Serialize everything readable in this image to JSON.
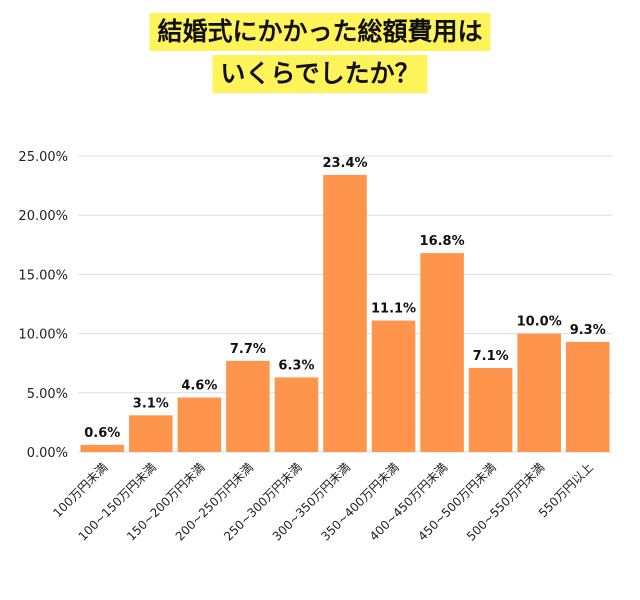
{
  "chart_data": {
    "type": "bar",
    "title": [
      "結婚式にかかった総額費用は",
      "いくらでしたか？"
    ],
    "categories": [
      "100万円未満",
      "100~150万円未満",
      "150~200万円未満",
      "200~250万円未満",
      "250~300万円未満",
      "300~350万円未満",
      "350~400万円未満",
      "400~450万円未満",
      "450~500万円未満",
      "500~550万円未満",
      "550万円以上"
    ],
    "values": [
      0.6,
      3.1,
      4.6,
      7.7,
      6.3,
      23.4,
      11.1,
      16.8,
      7.1,
      10.0,
      9.3
    ],
    "data_labels": [
      "0.6%",
      "3.1%",
      "4.6%",
      "7.7%",
      "6.3%",
      "23.4%",
      "11.1%",
      "16.8%",
      "7.1%",
      "10.0%",
      "9.3%"
    ],
    "yticks": [
      "0.00%",
      "5.00%",
      "10.00%",
      "15.00%",
      "20.00%",
      "25.00%"
    ],
    "ylim": [
      0,
      25
    ],
    "xlabel": "",
    "ylabel": "",
    "grid": true,
    "colors": {
      "bar": "#ff944d",
      "title_highlight": "#fff35a",
      "grid": "#dddddd"
    }
  }
}
